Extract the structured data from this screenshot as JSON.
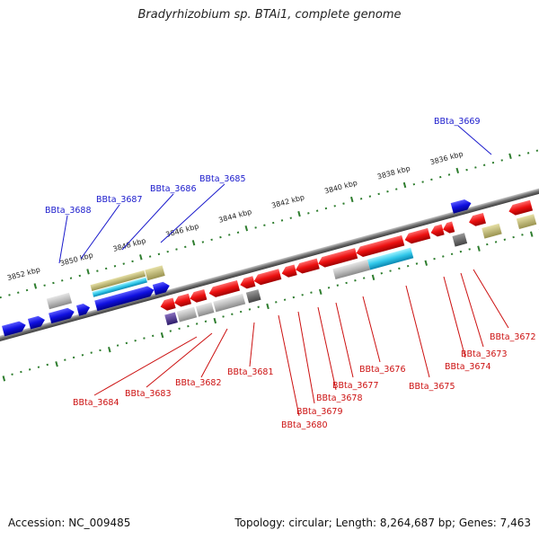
{
  "title": "Bradyrhizobium sp. BTAi1, complete genome",
  "footer": {
    "accession": "Accession: NC_009485",
    "topology": "Topology: circular; Length: 8,264,687 bp; Genes: 7,463"
  },
  "colors": {
    "forward_gene": "#1010e0",
    "reverse_gene": "#e81010",
    "backbone": "#808080",
    "tick": "#2e7d2e",
    "label_forward": "#1a1acc",
    "label_reverse": "#cc1010",
    "rna_cyan": "#30c8e8",
    "olive": "#bdb66a",
    "grey_gene": "#b4b4b4",
    "dark_grey_gene": "#707070",
    "pink": "#ff3b8f",
    "purple": "#5b3c8c"
  },
  "scale_ticks": [
    {
      "label": "3852 kbp"
    },
    {
      "label": "3850 kbp"
    },
    {
      "label": "3848 kbp"
    },
    {
      "label": "3846 kbp"
    },
    {
      "label": "3844 kbp"
    },
    {
      "label": "3842 kbp"
    },
    {
      "label": "3840 kbp"
    },
    {
      "label": "3838 kbp"
    },
    {
      "label": "3836 kbp"
    }
  ],
  "gene_labels_forward": [
    "BBta_3688",
    "BBta_3687",
    "BBta_3686",
    "BBta_3685",
    "BBta_3669"
  ],
  "gene_labels_reverse": [
    "BBta_3684",
    "BBta_3683",
    "BBta_3682",
    "BBta_3681",
    "BBta_3680",
    "BBta_3679",
    "BBta_3678",
    "BBta_3677",
    "BBta_3676",
    "BBta_3675",
    "BBta_3674",
    "BBta_3673",
    "BBta_3672"
  ]
}
